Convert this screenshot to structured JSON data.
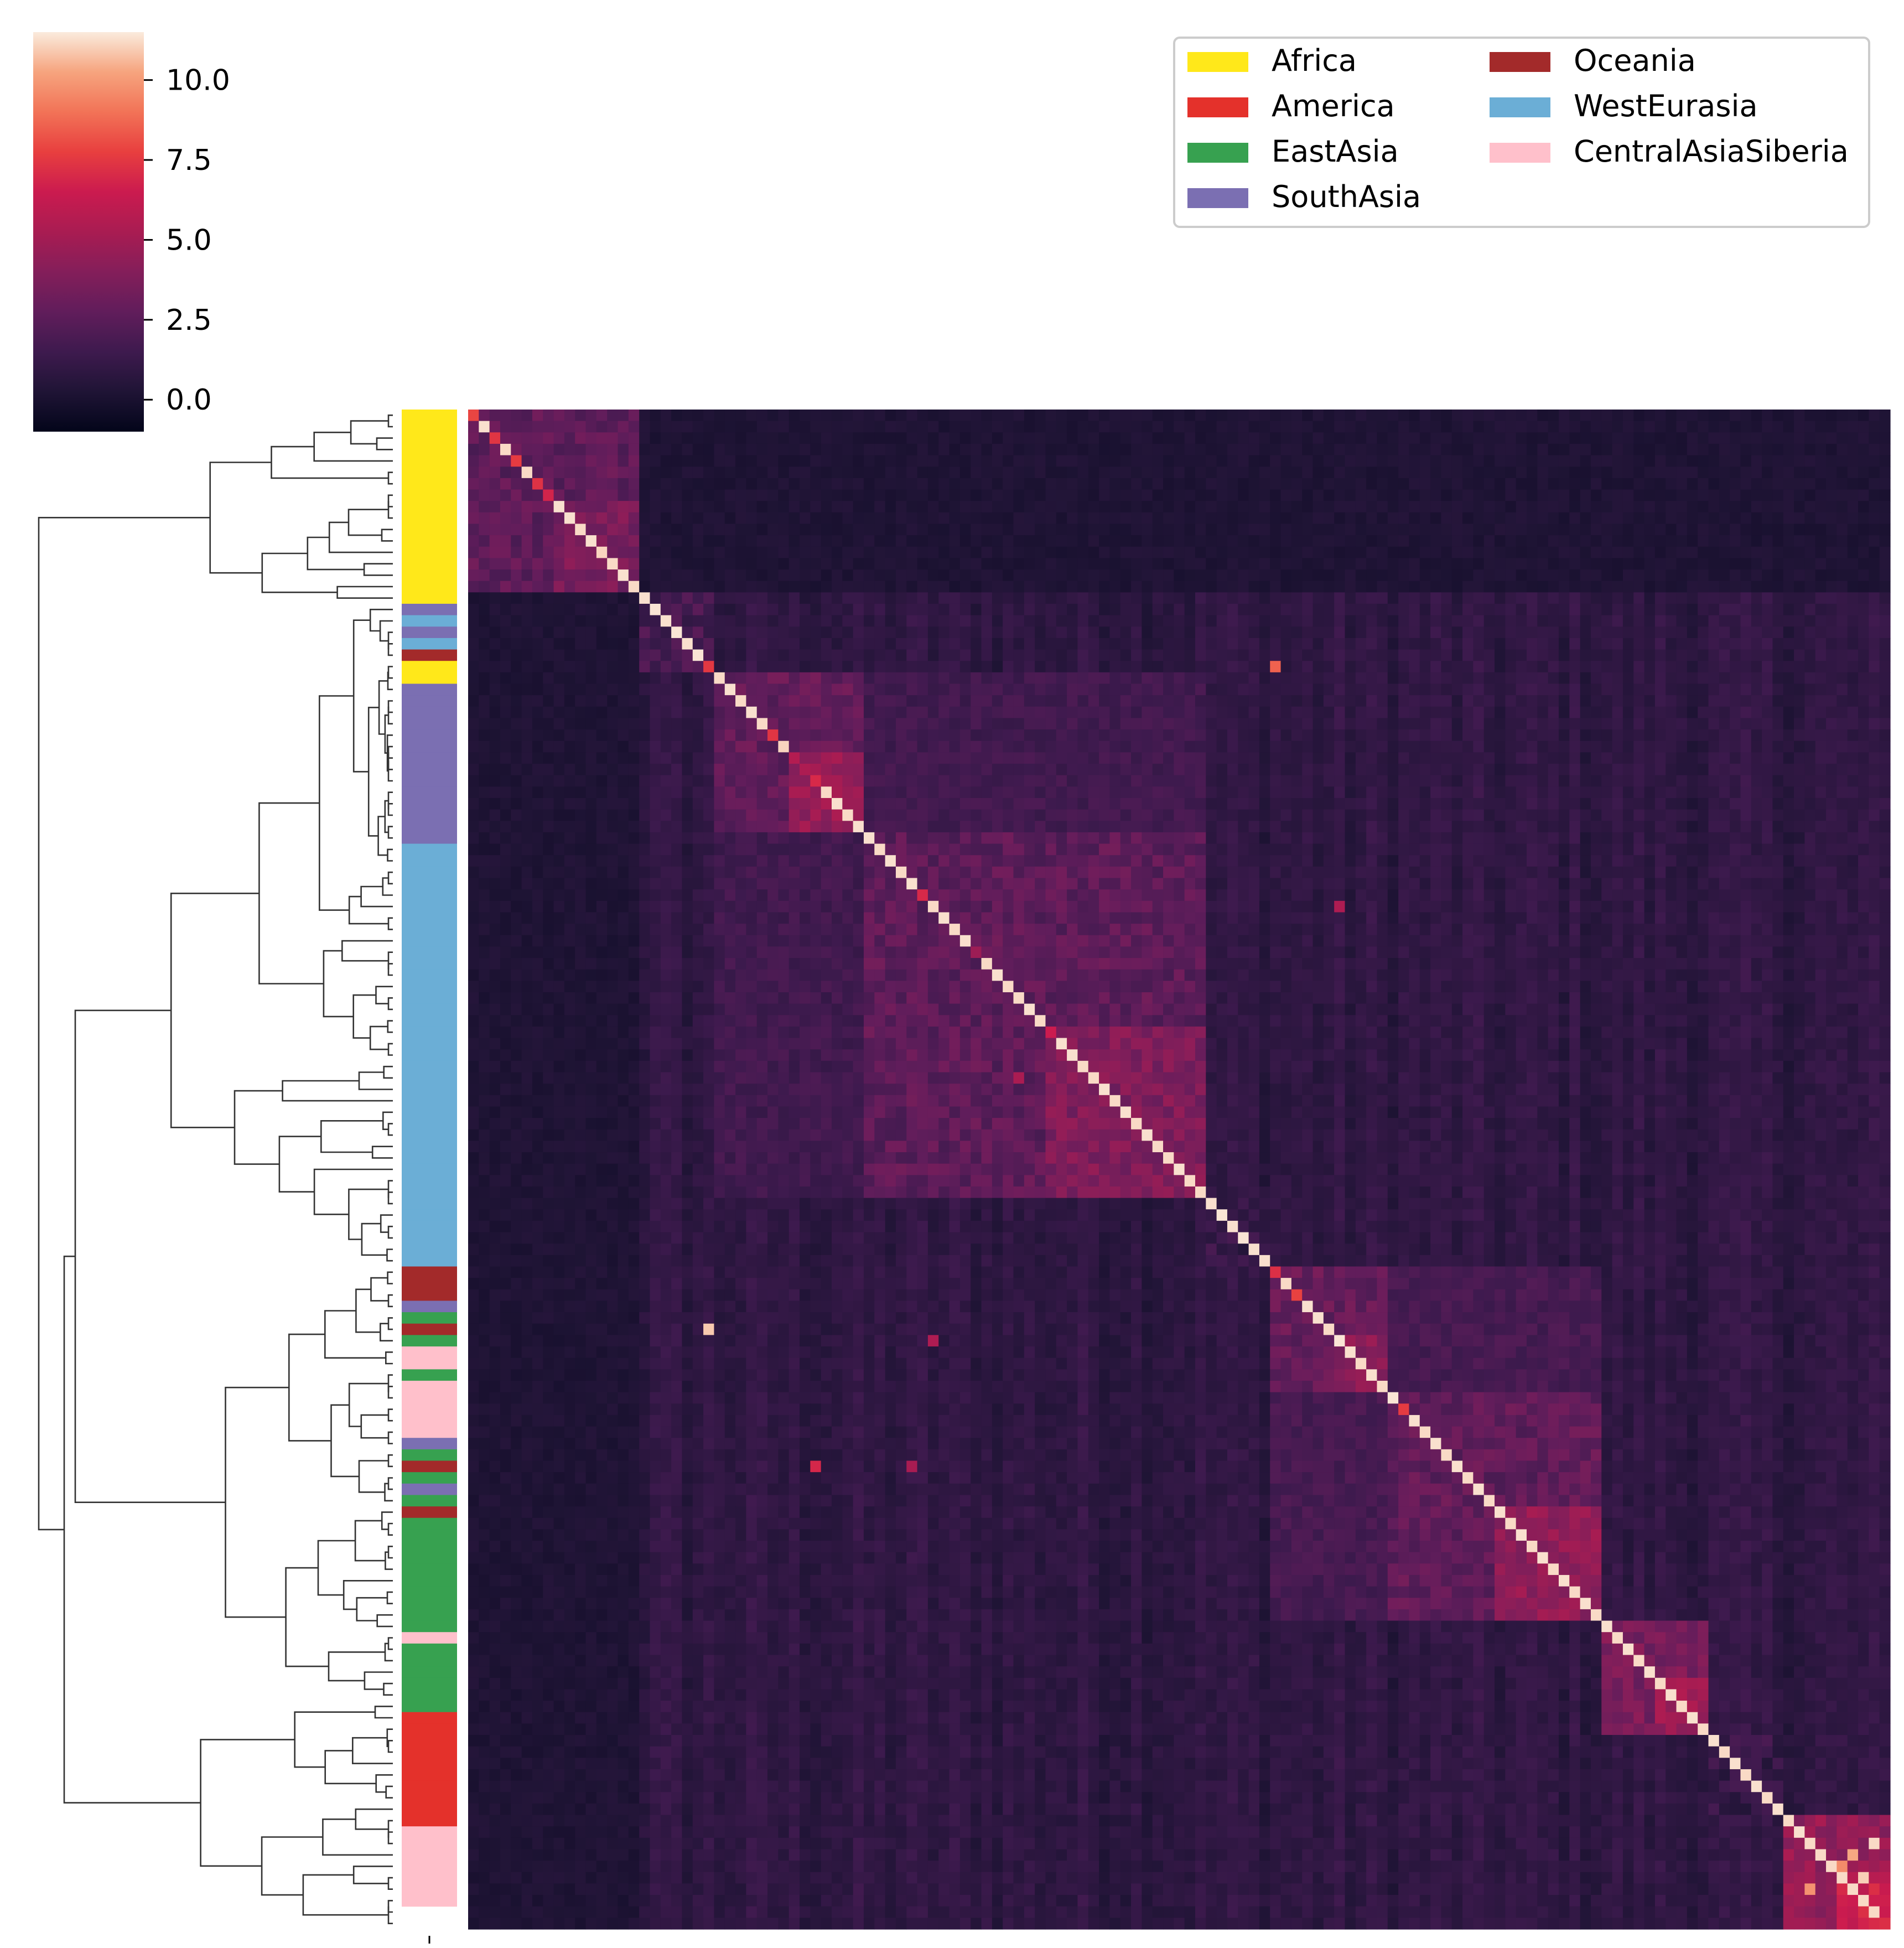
{
  "chart_data": {
    "type": "heatmap",
    "title": "",
    "xlabel": "",
    "ylabel": "",
    "colormap": "rocket",
    "color_range": [
      -1.0,
      11.5
    ],
    "colorbar": {
      "ticks": [
        0.0,
        2.5,
        5.0,
        7.5,
        10.0
      ],
      "tick_labels": [
        "0.0",
        "2.5",
        "5.0",
        "7.5",
        "10.0"
      ]
    },
    "n_samples": 133,
    "legend": {
      "placement": "top-right",
      "columns": 2,
      "entries": [
        {
          "label": "Africa",
          "color": "#ffe81a"
        },
        {
          "label": "America",
          "color": "#e4312b"
        },
        {
          "label": "EastAsia",
          "color": "#37a150"
        },
        {
          "label": "SouthAsia",
          "color": "#7b6fb2"
        },
        {
          "label": "Oceania",
          "color": "#a32a2a"
        },
        {
          "label": "WestEurasia",
          "color": "#6baed6"
        },
        {
          "label": "CentralAsiaSiberia",
          "color": "#ffc0cb"
        }
      ]
    },
    "row_annotation_order": [
      "Africa",
      "Africa",
      "Africa",
      "Africa",
      "Africa",
      "Africa",
      "Africa",
      "Africa",
      "Africa",
      "Africa",
      "Africa",
      "Africa",
      "Africa",
      "Africa",
      "Africa",
      "Africa",
      "Africa",
      "SouthAsia",
      "WestEurasia",
      "SouthAsia",
      "WestEurasia",
      "Oceania",
      "Africa",
      "Africa",
      "SouthAsia",
      "SouthAsia",
      "SouthAsia",
      "SouthAsia",
      "SouthAsia",
      "SouthAsia",
      "SouthAsia",
      "SouthAsia",
      "SouthAsia",
      "SouthAsia",
      "SouthAsia",
      "SouthAsia",
      "SouthAsia",
      "SouthAsia",
      "WestEurasia",
      "WestEurasia",
      "WestEurasia",
      "WestEurasia",
      "WestEurasia",
      "WestEurasia",
      "WestEurasia",
      "WestEurasia",
      "WestEurasia",
      "WestEurasia",
      "WestEurasia",
      "WestEurasia",
      "WestEurasia",
      "WestEurasia",
      "WestEurasia",
      "WestEurasia",
      "WestEurasia",
      "WestEurasia",
      "WestEurasia",
      "WestEurasia",
      "WestEurasia",
      "WestEurasia",
      "WestEurasia",
      "WestEurasia",
      "WestEurasia",
      "WestEurasia",
      "WestEurasia",
      "WestEurasia",
      "WestEurasia",
      "WestEurasia",
      "WestEurasia",
      "WestEurasia",
      "WestEurasia",
      "WestEurasia",
      "WestEurasia",
      "WestEurasia",
      "WestEurasia",
      "Oceania",
      "Oceania",
      "Oceania",
      "SouthAsia",
      "EastAsia",
      "Oceania",
      "EastAsia",
      "CentralAsiaSiberia",
      "CentralAsiaSiberia",
      "EastAsia",
      "CentralAsiaSiberia",
      "CentralAsiaSiberia",
      "CentralAsiaSiberia",
      "CentralAsiaSiberia",
      "CentralAsiaSiberia",
      "SouthAsia",
      "EastAsia",
      "Oceania",
      "EastAsia",
      "SouthAsia",
      "EastAsia",
      "Oceania",
      "EastAsia",
      "EastAsia",
      "EastAsia",
      "EastAsia",
      "EastAsia",
      "EastAsia",
      "EastAsia",
      "EastAsia",
      "EastAsia",
      "EastAsia",
      "CentralAsiaSiberia",
      "EastAsia",
      "EastAsia",
      "EastAsia",
      "EastAsia",
      "EastAsia",
      "EastAsia",
      "America",
      "America",
      "America",
      "America",
      "America",
      "America",
      "America",
      "America",
      "America",
      "America",
      "CentralAsiaSiberia",
      "CentralAsiaSiberia",
      "CentralAsiaSiberia",
      "CentralAsiaSiberia",
      "CentralAsiaSiberia",
      "CentralAsiaSiberia",
      "CentralAsiaSiberia"
    ],
    "blocks": [
      {
        "start": 0,
        "end": 16,
        "within": 2.6,
        "hot": 3.6
      },
      {
        "start": 16,
        "end": 23,
        "within": 1.8,
        "hot": 1.8
      },
      {
        "start": 23,
        "end": 37,
        "within": 2.8,
        "hot": 4.6
      },
      {
        "start": 37,
        "end": 69,
        "within": 2.6,
        "hot": 3.8
      },
      {
        "start": 69,
        "end": 75,
        "within": 1.2,
        "hot": 1.2
      },
      {
        "start": 75,
        "end": 86,
        "within": 2.9,
        "hot": 4.2
      },
      {
        "start": 86,
        "end": 106,
        "within": 2.7,
        "hot": 4.4
      },
      {
        "start": 106,
        "end": 116,
        "within": 3.6,
        "hot": 4.8
      },
      {
        "start": 116,
        "end": 123,
        "within": 1.2,
        "hot": 1.2
      },
      {
        "start": 123,
        "end": 133,
        "within": 4.5,
        "hot": 6.5
      }
    ],
    "background_level": 0.9,
    "diagonal_values": [
      7.9,
      11.3,
      7.4,
      11.2,
      7.6,
      11.2,
      7.3,
      6.8,
      11.3,
      11.3,
      11.2,
      11.3,
      11.1,
      11.2,
      11.3,
      11.2,
      11.3,
      11.4,
      11.3,
      11.4,
      11.3,
      11.4,
      7.5,
      11.2,
      11.3,
      11.2,
      11.3,
      11.2,
      7.4,
      11.1,
      5.6,
      5.4,
      7.0,
      11.2,
      11.3,
      11.2,
      11.3,
      11.3,
      11.2,
      11.3,
      11.2,
      11.3,
      7.0,
      11.2,
      11.3,
      11.2,
      11.3,
      4.8,
      11.2,
      11.3,
      11.2,
      11.2,
      11.3,
      11.2,
      6.5,
      11.3,
      11.3,
      11.2,
      11.2,
      11.3,
      11.2,
      11.3,
      11.2,
      11.3,
      11.2,
      11.2,
      11.3,
      11.2,
      11.2,
      11.3,
      11.4,
      11.3,
      11.4,
      11.3,
      11.3,
      7.2,
      11.2,
      7.8,
      11.3,
      11.3,
      11.2,
      11.4,
      11.3,
      11.2,
      11.3,
      11.2,
      11.4,
      7.6,
      11.3,
      11.2,
      11.3,
      11.2,
      11.3,
      11.2,
      11.3,
      11.2,
      11.3,
      11.2,
      11.3,
      11.2,
      11.3,
      11.2,
      11.3,
      11.2,
      11.3,
      11.2,
      11.3,
      11.2,
      11.3,
      11.2,
      11.3,
      11.2,
      11.3,
      11.2,
      11.3,
      11.2,
      11.3,
      11.2,
      11.3,
      11.2,
      11.3,
      11.2,
      11.3,
      11.2,
      11.3,
      11.2
    ],
    "highlights": [
      {
        "row": 22,
        "col": 75,
        "value": 8.6
      },
      {
        "row": 80,
        "col": 22,
        "value": 10.9
      },
      {
        "row": 43,
        "col": 81,
        "value": 5.4
      },
      {
        "row": 81,
        "col": 43,
        "value": 5.4
      },
      {
        "row": 92,
        "col": 41,
        "value": 5.2
      },
      {
        "row": 58,
        "col": 51,
        "value": 5.3
      },
      {
        "row": 125,
        "col": 131,
        "value": 11.2
      },
      {
        "row": 126,
        "col": 129,
        "value": 10.3
      },
      {
        "row": 127,
        "col": 128,
        "value": 9.6
      },
      {
        "row": 128,
        "col": 130,
        "value": 11.0
      },
      {
        "row": 132,
        "col": 132,
        "value": 7.2
      },
      {
        "row": 92,
        "col": 32,
        "value": 6.9
      },
      {
        "row": 129,
        "col": 125,
        "value": 9.8
      }
    ],
    "x_tick_labels": [
      ""
    ],
    "y_tick_labels": []
  }
}
